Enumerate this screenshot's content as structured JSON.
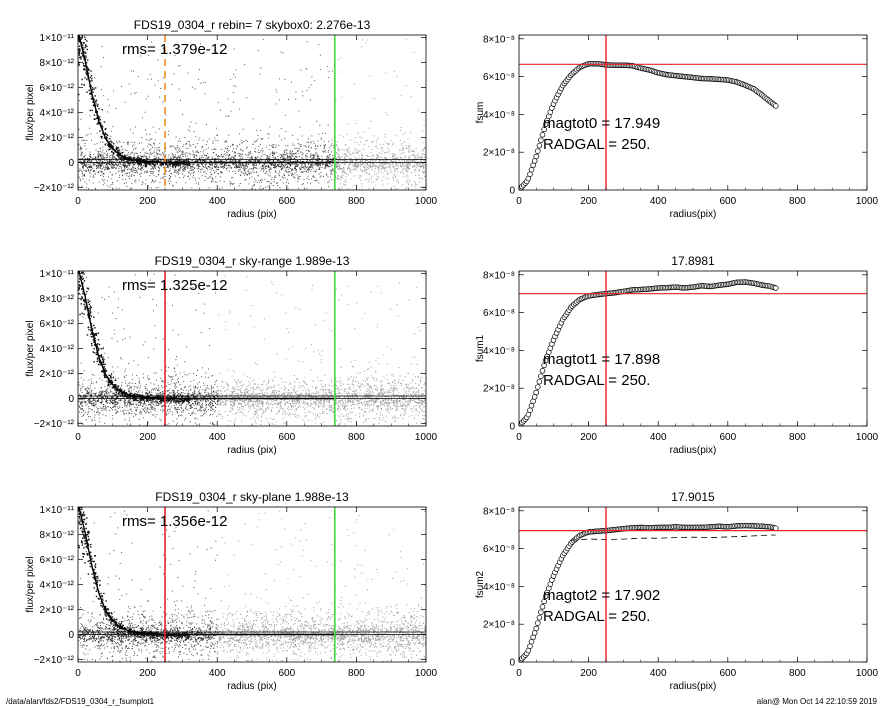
{
  "footer": {
    "left": "/data/alan/fds2/FDS19_0304_r_fsumplot1",
    "right": "alan@  Mon Oct 14 22:10:59 2019"
  },
  "colors": {
    "red": "#e8222a",
    "green": "#3ddc3d",
    "orange": "#f08a1e",
    "points_dark": "#111111",
    "points_gray": "#a0a0a0"
  },
  "chart_data": [
    {
      "type": "scatter",
      "title": "FDS19_0304_r rebin= 7    skybox0:  2.276e-13",
      "xlabel": "radius (pix)",
      "ylabel": "flux/per pixel",
      "xlim": [
        0,
        1000
      ],
      "ylim": [
        -2.2e-12,
        1.02e-11
      ],
      "xticks": [
        "0",
        "200",
        "400",
        "600",
        "800",
        "1000"
      ],
      "yticks": [
        {
          "v": 1e-11,
          "label": "1×10⁻¹¹"
        },
        {
          "v": 8e-12,
          "label": "8×10⁻¹²"
        },
        {
          "v": 6e-12,
          "label": "6×10⁻¹²"
        },
        {
          "v": 4e-12,
          "label": "4×10⁻¹²"
        },
        {
          "v": 2e-12,
          "label": "2×10⁻¹²"
        },
        {
          "v": 0,
          "label": "0"
        },
        {
          "v": -2e-12,
          "label": "−2×10⁻¹²"
        }
      ],
      "annotation": "rms= 1.379e-12",
      "vlines": [
        {
          "x": 250,
          "color": "orange",
          "dashed": true
        },
        {
          "x": 738,
          "color": "green",
          "dashed": false
        }
      ],
      "hlines": [
        2.3e-13,
        0
      ],
      "profile_curve": {
        "x": [
          0,
          20,
          40,
          60,
          80,
          100,
          120,
          140,
          160,
          180,
          200,
          250,
          300,
          400,
          600,
          738
        ],
        "y": [
          1.05e-11,
          8.2e-12,
          5.5e-12,
          3.3e-12,
          1.9e-12,
          1.1e-12,
          6e-13,
          3.5e-13,
          2e-13,
          1.2e-13,
          8e-14,
          1e-14,
          0,
          0,
          0,
          0
        ]
      },
      "gray_region_start": 738
    },
    {
      "type": "line",
      "title": "",
      "xlabel": "radius(pix)",
      "ylabel": "fsum",
      "xlim": [
        0,
        1000
      ],
      "ylim": [
        0,
        8.2e-08
      ],
      "xticks": [
        "0",
        "200",
        "400",
        "600",
        "800",
        "1000"
      ],
      "yticks": [
        {
          "v": 8e-08,
          "label": "8×10⁻⁸"
        },
        {
          "v": 6e-08,
          "label": "6×10⁻⁸"
        },
        {
          "v": 4e-08,
          "label": "4×10⁻⁸"
        },
        {
          "v": 2e-08,
          "label": "2×10⁻⁸"
        },
        {
          "v": 0,
          "label": "0"
        }
      ],
      "notes": [
        "magtot0 =  17.949",
        "RADGAL =    250."
      ],
      "vline": 250,
      "hline": 6.65e-08,
      "series": [
        {
          "x": [
            0,
            25,
            50,
            75,
            100,
            125,
            150,
            175,
            200,
            225,
            250,
            275,
            300,
            325,
            350,
            375,
            400,
            425,
            450,
            475,
            500,
            525,
            550,
            575,
            600,
            625,
            650,
            675,
            700,
            720,
            738
          ],
          "y": [
            0,
            5e-09,
            1.8e-08,
            3.4e-08,
            4.6e-08,
            5.5e-08,
            6.1e-08,
            6.5e-08,
            6.68e-08,
            6.68e-08,
            6.62e-08,
            6.6e-08,
            6.6e-08,
            6.58e-08,
            6.45e-08,
            6.35e-08,
            6.2e-08,
            6.1e-08,
            6.05e-08,
            6e-08,
            5.95e-08,
            5.9e-08,
            5.88e-08,
            5.85e-08,
            5.82e-08,
            5.72e-08,
            5.55e-08,
            5.35e-08,
            5e-08,
            4.7e-08,
            4.45e-08
          ]
        }
      ]
    },
    {
      "type": "scatter",
      "title": "FDS19_0304_r sky-range  1.989e-13",
      "xlabel": "radius (pix)",
      "ylabel": "flux/per pixel",
      "xlim": [
        0,
        1000
      ],
      "ylim": [
        -2.2e-12,
        1.02e-11
      ],
      "xticks": [
        "0",
        "200",
        "400",
        "600",
        "800",
        "1000"
      ],
      "yticks": [
        {
          "v": 1e-11,
          "label": "1×10⁻¹¹"
        },
        {
          "v": 8e-12,
          "label": "8×10⁻¹²"
        },
        {
          "v": 6e-12,
          "label": "6×10⁻¹²"
        },
        {
          "v": 4e-12,
          "label": "4×10⁻¹²"
        },
        {
          "v": 2e-12,
          "label": "2×10⁻¹²"
        },
        {
          "v": 0,
          "label": "0"
        },
        {
          "v": -2e-12,
          "label": "−2×10⁻¹²"
        }
      ],
      "annotation": "rms= 1.325e-12",
      "vlines": [
        {
          "x": 250,
          "color": "red",
          "dashed": false
        },
        {
          "x": 738,
          "color": "green",
          "dashed": false
        }
      ],
      "hlines": [
        2e-13,
        0
      ],
      "profile_curve": {
        "x": [
          0,
          20,
          40,
          60,
          80,
          100,
          120,
          140,
          160,
          180,
          200,
          250,
          300,
          400,
          600,
          738
        ],
        "y": [
          1.05e-11,
          8.2e-12,
          5.5e-12,
          3.3e-12,
          1.9e-12,
          1.1e-12,
          6e-13,
          3.5e-13,
          2e-13,
          1.2e-13,
          8e-14,
          1e-14,
          0,
          0,
          0,
          0
        ]
      },
      "gray_region_start": 400
    },
    {
      "type": "line",
      "title": "17.8981",
      "xlabel": "radius(pix)",
      "ylabel": "fsum1",
      "xlim": [
        0,
        1000
      ],
      "ylim": [
        0,
        8.2e-08
      ],
      "xticks": [
        "0",
        "200",
        "400",
        "600",
        "800",
        "1000"
      ],
      "yticks": [
        {
          "v": 8e-08,
          "label": "8×10⁻⁸"
        },
        {
          "v": 6e-08,
          "label": "6×10⁻⁸"
        },
        {
          "v": 4e-08,
          "label": "4×10⁻⁸"
        },
        {
          "v": 2e-08,
          "label": "2×10⁻⁸"
        },
        {
          "v": 0,
          "label": "0"
        }
      ],
      "notes": [
        "magtot1 =  17.898",
        "RADGAL =    250."
      ],
      "vline": 250,
      "hline": 7e-08,
      "series": [
        {
          "x": [
            0,
            25,
            50,
            75,
            100,
            125,
            150,
            175,
            200,
            225,
            250,
            275,
            300,
            325,
            350,
            375,
            400,
            425,
            450,
            475,
            500,
            525,
            550,
            575,
            600,
            625,
            650,
            675,
            700,
            720,
            738
          ],
          "y": [
            0,
            5e-09,
            1.8e-08,
            3.4e-08,
            4.6e-08,
            5.6e-08,
            6.3e-08,
            6.7e-08,
            6.88e-08,
            6.95e-08,
            7e-08,
            7.05e-08,
            7.12e-08,
            7.2e-08,
            7.22e-08,
            7.25e-08,
            7.3e-08,
            7.32e-08,
            7.35e-08,
            7.3e-08,
            7.35e-08,
            7.42e-08,
            7.38e-08,
            7.45e-08,
            7.5e-08,
            7.6e-08,
            7.62e-08,
            7.55e-08,
            7.45e-08,
            7.4e-08,
            7.3e-08
          ]
        }
      ]
    },
    {
      "type": "scatter",
      "title": "FDS19_0304_r sky-plane  1.988e-13",
      "xlabel": "radius (pix)",
      "ylabel": "flux/per pixel",
      "xlim": [
        0,
        1000
      ],
      "ylim": [
        -2.2e-12,
        1.02e-11
      ],
      "xticks": [
        "0",
        "200",
        "400",
        "600",
        "800",
        "1000"
      ],
      "yticks": [
        {
          "v": 1e-11,
          "label": "1×10⁻¹¹"
        },
        {
          "v": 8e-12,
          "label": "8×10⁻¹²"
        },
        {
          "v": 6e-12,
          "label": "6×10⁻¹²"
        },
        {
          "v": 4e-12,
          "label": "4×10⁻¹²"
        },
        {
          "v": 2e-12,
          "label": "2×10⁻¹²"
        },
        {
          "v": 0,
          "label": "0"
        },
        {
          "v": -2e-12,
          "label": "−2×10⁻¹²"
        }
      ],
      "annotation": "rms= 1.356e-12",
      "vlines": [
        {
          "x": 250,
          "color": "red",
          "dashed": false
        },
        {
          "x": 738,
          "color": "green",
          "dashed": false
        }
      ],
      "hlines": [
        2e-13,
        0
      ],
      "profile_curve": {
        "x": [
          0,
          20,
          40,
          60,
          80,
          100,
          120,
          140,
          160,
          180,
          200,
          250,
          300,
          400,
          600,
          738
        ],
        "y": [
          1.05e-11,
          8.2e-12,
          5.5e-12,
          3.3e-12,
          1.9e-12,
          1.1e-12,
          6e-13,
          3.5e-13,
          2e-13,
          1.2e-13,
          8e-14,
          1e-14,
          0,
          0,
          0,
          0
        ]
      },
      "gray_region_start": 400
    },
    {
      "type": "line",
      "title": "17.9015",
      "xlabel": "radius(pix)",
      "ylabel": "fsum2",
      "xlim": [
        0,
        1000
      ],
      "ylim": [
        0,
        8.2e-08
      ],
      "xticks": [
        "0",
        "200",
        "400",
        "600",
        "800",
        "1000"
      ],
      "yticks": [
        {
          "v": 8e-08,
          "label": "8×10⁻⁸"
        },
        {
          "v": 6e-08,
          "label": "6×10⁻⁸"
        },
        {
          "v": 4e-08,
          "label": "4×10⁻⁸"
        },
        {
          "v": 2e-08,
          "label": "2×10⁻⁸"
        },
        {
          "v": 0,
          "label": "0"
        }
      ],
      "notes": [
        "magtot2 =  17.902",
        "RADGAL =    250."
      ],
      "vline": 250,
      "hline": 6.95e-08,
      "series": [
        {
          "x": [
            0,
            25,
            50,
            75,
            100,
            125,
            150,
            175,
            200,
            225,
            250,
            275,
            300,
            325,
            350,
            375,
            400,
            425,
            450,
            475,
            500,
            525,
            550,
            575,
            600,
            625,
            650,
            675,
            700,
            720,
            738
          ],
          "y": [
            0,
            5e-09,
            1.8e-08,
            3.4e-08,
            4.6e-08,
            5.6e-08,
            6.3e-08,
            6.7e-08,
            6.88e-08,
            6.92e-08,
            6.95e-08,
            7e-08,
            7.05e-08,
            7.1e-08,
            7.12e-08,
            7.1e-08,
            7.12e-08,
            7.12e-08,
            7.15e-08,
            7.12e-08,
            7.12e-08,
            7.12e-08,
            7.15e-08,
            7.18e-08,
            7.15e-08,
            7.2e-08,
            7.22e-08,
            7.2e-08,
            7.18e-08,
            7.15e-08,
            7.08e-08
          ]
        },
        {
          "x": [
            150,
            200,
            250,
            300,
            350,
            400,
            450,
            500,
            550,
            600,
            650,
            700,
            738
          ],
          "y": [
            6.45e-08,
            6.5e-08,
            6.48e-08,
            6.5e-08,
            6.55e-08,
            6.55e-08,
            6.58e-08,
            6.6e-08,
            6.58e-08,
            6.62e-08,
            6.65e-08,
            6.7e-08,
            6.72e-08
          ]
        }
      ]
    }
  ]
}
